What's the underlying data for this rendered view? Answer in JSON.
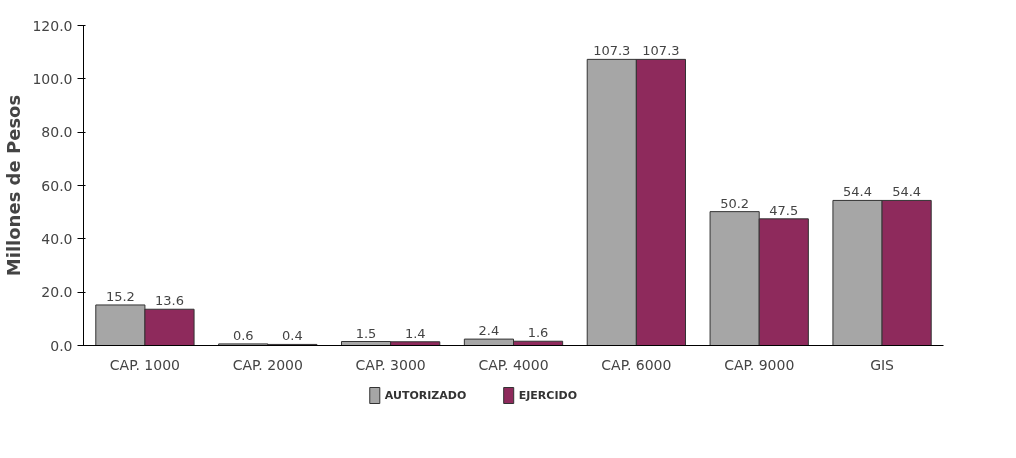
{
  "chart_data": {
    "type": "bar",
    "ylabel": "Millones de Pesos",
    "categories": [
      "CAP. 1000",
      "CAP. 2000",
      "CAP. 3000",
      "CAP. 4000",
      "CAP. 6000",
      "CAP. 9000",
      "GIS"
    ],
    "series": [
      {
        "name": "AUTORIZADO",
        "color": "#a6a6a6",
        "values": [
          15.2,
          0.6,
          1.5,
          2.4,
          107.3,
          50.2,
          54.4
        ]
      },
      {
        "name": "EJERCIDO",
        "color": "#8e2a5c",
        "values": [
          13.6,
          0.4,
          1.4,
          1.6,
          107.3,
          47.5,
          54.4
        ]
      }
    ],
    "ylim": [
      0,
      120
    ],
    "yticks": [
      {
        "value": 0,
        "label": "0.0"
      },
      {
        "value": 20,
        "label": "20.0"
      },
      {
        "value": 40,
        "label": "40.0"
      },
      {
        "value": 60,
        "label": "60.0"
      },
      {
        "value": 80,
        "label": "80.0"
      },
      {
        "value": 100,
        "label": "100.0"
      },
      {
        "value": 120,
        "label": "120.0"
      }
    ],
    "data_labels": true,
    "grid": false,
    "legend": "bottom"
  }
}
